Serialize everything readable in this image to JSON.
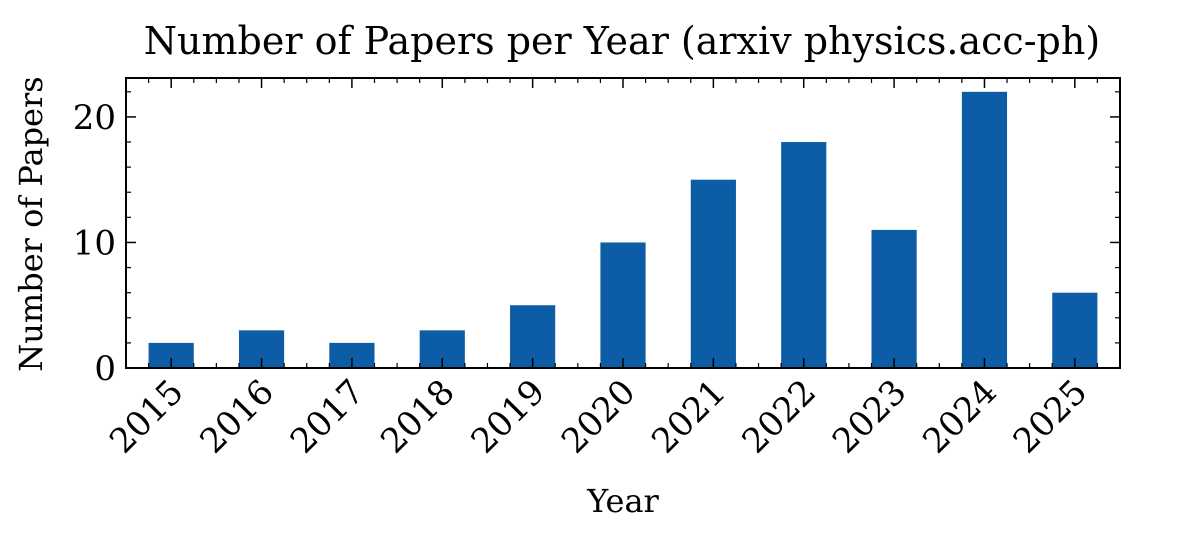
{
  "chart_data": {
    "type": "bar",
    "title": "Number of Papers per Year (arxiv physics.acc-ph)",
    "xlabel": "Year",
    "ylabel": "Number of Papers",
    "categories": [
      "2015",
      "2016",
      "2017",
      "2018",
      "2019",
      "2020",
      "2021",
      "2022",
      "2023",
      "2024",
      "2025"
    ],
    "values": [
      2,
      3,
      2,
      3,
      5,
      10,
      15,
      18,
      11,
      22,
      6
    ],
    "ylim": [
      0,
      23.1
    ],
    "yticks": [
      0,
      10,
      20
    ],
    "yticks_labels": [
      "0",
      "10",
      "20"
    ],
    "grid": false,
    "legend": "none",
    "colors": {
      "bar": "#0c5da5",
      "axis": "#000000"
    }
  }
}
